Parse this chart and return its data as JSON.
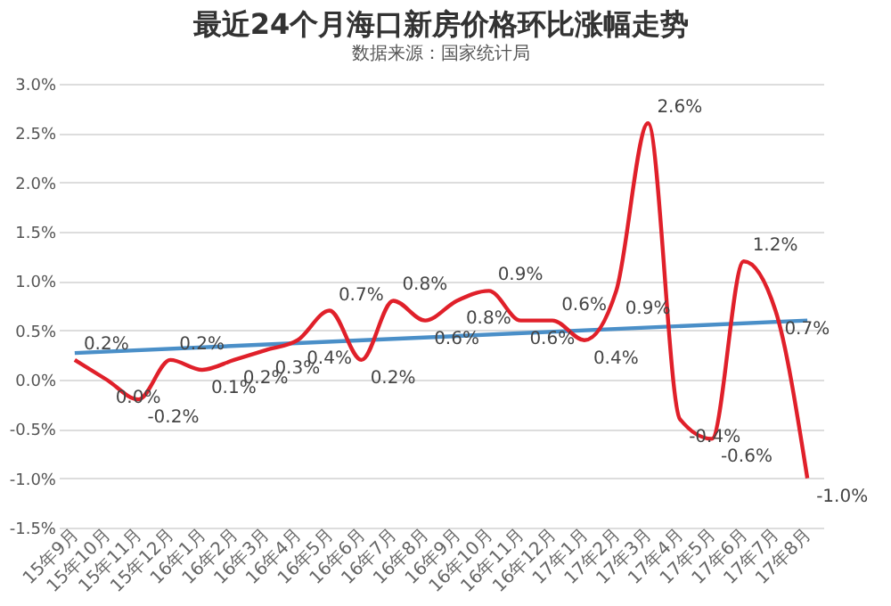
{
  "chart_data": {
    "type": "line",
    "title": "最近24个月海口新房价格环比涨幅走势",
    "subtitle": "数据来源：国家统计局",
    "categories": [
      "15年9月",
      "15年10月",
      "15年11月",
      "15年12月",
      "16年1月",
      "16年2月",
      "16年3月",
      "16年4月",
      "16年5月",
      "16年6月",
      "16年7月",
      "16年8月",
      "16年9月",
      "16年10月",
      "16年11月",
      "16年12月",
      "17年1月",
      "17年2月",
      "17年3月",
      "17年4月",
      "17年5月",
      "17年6月",
      "17年7月",
      "17年8月"
    ],
    "series": [
      {
        "color": "#4a8fc8",
        "x": [
          "15年9月",
          "17年8月"
        ],
        "values": [
          0.27,
          0.6
        ]
      },
      {
        "color": "#e0202a",
        "values": [
          0.2,
          0.0,
          -0.2,
          0.2,
          0.1,
          0.2,
          0.3,
          0.4,
          0.7,
          0.2,
          0.8,
          0.6,
          0.8,
          0.9,
          0.6,
          0.6,
          0.4,
          0.9,
          2.6,
          -0.4,
          -0.6,
          1.2,
          0.7,
          -1.0
        ],
        "value_labels": [
          "0.2%",
          "0.0%",
          "-0.2%",
          "0.2%",
          "0.1%",
          "0.2%",
          "0.3%",
          "0.4%",
          "0.7%",
          "0.2%",
          "0.8%",
          "0.6%",
          "0.8%",
          "0.9%",
          "0.6%",
          "0.6%",
          "0.4%",
          "0.9%",
          "2.6%",
          "-0.4%",
          "-0.6%",
          "1.2%",
          "0.7%",
          "-1.0%"
        ]
      }
    ],
    "ylim": [
      -1.5,
      3.0
    ],
    "yticks": [
      {
        "value": -1.5,
        "label": "-1.5%"
      },
      {
        "value": -1.0,
        "label": "-1.0%"
      },
      {
        "value": -0.5,
        "label": "-0.5%"
      },
      {
        "value": 0,
        "label": "0.0%"
      },
      {
        "value": 0.5,
        "label": "0.5%"
      },
      {
        "value": 1.0,
        "label": "1.0%"
      },
      {
        "value": 1.5,
        "label": "1.5%"
      },
      {
        "value": 2.0,
        "label": "2.0%"
      },
      {
        "value": 2.5,
        "label": "2.5%"
      },
      {
        "value": 3.0,
        "label": "3.0%"
      }
    ],
    "grid": "y"
  }
}
